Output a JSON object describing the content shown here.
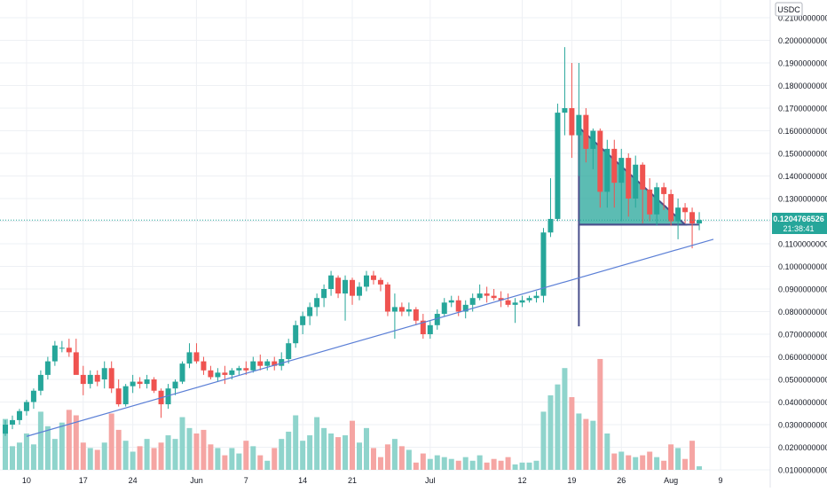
{
  "chart_data": {
    "type": "candlestick",
    "currency": "USDC",
    "price_label": "0.1204766526",
    "countdown": "21:38:41",
    "ylim": [
      0.0095,
      0.2115
    ],
    "y_ticks": [
      "0.2100000000",
      "0.2000000000",
      "0.1900000000",
      "0.1800000000",
      "0.1700000000",
      "0.1600000000",
      "0.1500000000",
      "0.1400000000",
      "0.1300000000",
      "0.1200000000",
      "0.1100000000",
      "0.1000000000",
      "0.0900000000",
      "0.0800000000",
      "0.0700000000",
      "0.0600000000",
      "0.0500000000",
      "0.0400000000",
      "0.0300000000",
      "0.0200000000",
      "0.0100000000"
    ],
    "x_ticks": [
      "10",
      "17",
      "24",
      "Jun",
      "7",
      "14",
      "21",
      "Jul",
      "12",
      "19",
      "26",
      "Aug",
      "9"
    ],
    "candles": [
      [
        0.026,
        0.032,
        0.025,
        0.03
      ],
      [
        0.03,
        0.034,
        0.028,
        0.032
      ],
      [
        0.032,
        0.037,
        0.03,
        0.036
      ],
      [
        0.036,
        0.041,
        0.034,
        0.04
      ],
      [
        0.04,
        0.046,
        0.037,
        0.045
      ],
      [
        0.045,
        0.054,
        0.043,
        0.052
      ],
      [
        0.052,
        0.06,
        0.05,
        0.058
      ],
      [
        0.058,
        0.067,
        0.056,
        0.065
      ],
      [
        0.064,
        0.067,
        0.062,
        0.064
      ],
      [
        0.064,
        0.068,
        0.06,
        0.062
      ],
      [
        0.062,
        0.068,
        0.053,
        0.052
      ],
      [
        0.052,
        0.056,
        0.043,
        0.048
      ],
      [
        0.048,
        0.054,
        0.046,
        0.052
      ],
      [
        0.052,
        0.054,
        0.047,
        0.049
      ],
      [
        0.05,
        0.058,
        0.046,
        0.055
      ],
      [
        0.055,
        0.058,
        0.044,
        0.046
      ],
      [
        0.046,
        0.05,
        0.038,
        0.039
      ],
      [
        0.039,
        0.048,
        0.038,
        0.047
      ],
      [
        0.047,
        0.052,
        0.044,
        0.049
      ],
      [
        0.049,
        0.051,
        0.046,
        0.048
      ],
      [
        0.048,
        0.052,
        0.046,
        0.05
      ],
      [
        0.05,
        0.051,
        0.044,
        0.045
      ],
      [
        0.045,
        0.046,
        0.033,
        0.039
      ],
      [
        0.039,
        0.048,
        0.037,
        0.046
      ],
      [
        0.046,
        0.05,
        0.043,
        0.049
      ],
      [
        0.049,
        0.058,
        0.048,
        0.057
      ],
      [
        0.057,
        0.066,
        0.055,
        0.062
      ],
      [
        0.062,
        0.066,
        0.057,
        0.058
      ],
      [
        0.058,
        0.06,
        0.052,
        0.054
      ],
      [
        0.054,
        0.056,
        0.05,
        0.051
      ],
      [
        0.051,
        0.055,
        0.049,
        0.053
      ],
      [
        0.053,
        0.056,
        0.048,
        0.052
      ],
      [
        0.052,
        0.055,
        0.05,
        0.054
      ],
      [
        0.054,
        0.056,
        0.052,
        0.055
      ],
      [
        0.055,
        0.058,
        0.052,
        0.054
      ],
      [
        0.054,
        0.06,
        0.053,
        0.058
      ],
      [
        0.058,
        0.061,
        0.054,
        0.056
      ],
      [
        0.056,
        0.059,
        0.054,
        0.058
      ],
      [
        0.058,
        0.06,
        0.054,
        0.056
      ],
      [
        0.056,
        0.062,
        0.054,
        0.059
      ],
      [
        0.059,
        0.068,
        0.057,
        0.066
      ],
      [
        0.066,
        0.076,
        0.064,
        0.074
      ],
      [
        0.074,
        0.08,
        0.07,
        0.078
      ],
      [
        0.078,
        0.084,
        0.074,
        0.082
      ],
      [
        0.082,
        0.088,
        0.078,
        0.086
      ],
      [
        0.086,
        0.092,
        0.082,
        0.09
      ],
      [
        0.09,
        0.098,
        0.087,
        0.096
      ],
      [
        0.095,
        0.096,
        0.086,
        0.088
      ],
      [
        0.088,
        0.096,
        0.076,
        0.094
      ],
      [
        0.094,
        0.095,
        0.083,
        0.087
      ],
      [
        0.087,
        0.093,
        0.085,
        0.091
      ],
      [
        0.091,
        0.098,
        0.089,
        0.096
      ],
      [
        0.096,
        0.098,
        0.092,
        0.094
      ],
      [
        0.094,
        0.095,
        0.089,
        0.092
      ],
      [
        0.092,
        0.093,
        0.078,
        0.08
      ],
      [
        0.08,
        0.088,
        0.068,
        0.082
      ],
      [
        0.082,
        0.084,
        0.078,
        0.08
      ],
      [
        0.08,
        0.084,
        0.078,
        0.081
      ],
      [
        0.081,
        0.082,
        0.074,
        0.076
      ],
      [
        0.076,
        0.079,
        0.068,
        0.07
      ],
      [
        0.07,
        0.076,
        0.068,
        0.074
      ],
      [
        0.074,
        0.081,
        0.072,
        0.079
      ],
      [
        0.079,
        0.086,
        0.078,
        0.084
      ],
      [
        0.084,
        0.087,
        0.082,
        0.085
      ],
      [
        0.085,
        0.087,
        0.078,
        0.08
      ],
      [
        0.08,
        0.085,
        0.077,
        0.083
      ],
      [
        0.083,
        0.088,
        0.08,
        0.086
      ],
      [
        0.086,
        0.092,
        0.085,
        0.088
      ],
      [
        0.088,
        0.091,
        0.084,
        0.087
      ],
      [
        0.087,
        0.09,
        0.085,
        0.086
      ],
      [
        0.086,
        0.089,
        0.082,
        0.085
      ],
      [
        0.085,
        0.088,
        0.082,
        0.083
      ],
      [
        0.083,
        0.086,
        0.075,
        0.084
      ],
      [
        0.084,
        0.087,
        0.082,
        0.085
      ],
      [
        0.085,
        0.087,
        0.084,
        0.086
      ],
      [
        0.086,
        0.089,
        0.084,
        0.087
      ],
      [
        0.087,
        0.117,
        0.084,
        0.115
      ],
      [
        0.115,
        0.139,
        0.113,
        0.121
      ],
      [
        0.121,
        0.172,
        0.12,
        0.168
      ],
      [
        0.168,
        0.197,
        0.158,
        0.17
      ],
      [
        0.17,
        0.19,
        0.148,
        0.158
      ],
      [
        0.158,
        0.19,
        0.14,
        0.167
      ],
      [
        0.167,
        0.17,
        0.146,
        0.152
      ],
      [
        0.152,
        0.161,
        0.143,
        0.16
      ],
      [
        0.16,
        0.161,
        0.126,
        0.133
      ],
      [
        0.133,
        0.156,
        0.126,
        0.152
      ],
      [
        0.152,
        0.156,
        0.126,
        0.137
      ],
      [
        0.137,
        0.152,
        0.12,
        0.148
      ],
      [
        0.148,
        0.15,
        0.122,
        0.13
      ],
      [
        0.13,
        0.149,
        0.126,
        0.145
      ],
      [
        0.145,
        0.146,
        0.119,
        0.134
      ],
      [
        0.134,
        0.139,
        0.12,
        0.123
      ],
      [
        0.123,
        0.137,
        0.118,
        0.135
      ],
      [
        0.135,
        0.137,
        0.125,
        0.132
      ],
      [
        0.132,
        0.134,
        0.118,
        0.12
      ],
      [
        0.12,
        0.13,
        0.112,
        0.126
      ],
      [
        0.126,
        0.128,
        0.119,
        0.124
      ],
      [
        0.124,
        0.126,
        0.108,
        0.119
      ],
      [
        0.119,
        0.124,
        0.116,
        0.1205
      ]
    ],
    "volume": [
      0.028,
      0.013,
      0.015,
      0.02,
      0.014,
      0.032,
      0.024,
      0.017,
      0.026,
      0.033,
      0.03,
      0.015,
      0.012,
      0.011,
      0.015,
      0.031,
      0.022,
      0.016,
      0.01,
      0.013,
      0.017,
      0.012,
      0.015,
      0.019,
      0.017,
      0.029,
      0.023,
      0.02,
      0.022,
      0.014,
      0.012,
      0.008,
      0.012,
      0.009,
      0.016,
      0.013,
      0.008,
      0.005,
      0.012,
      0.017,
      0.021,
      0.03,
      0.016,
      0.019,
      0.029,
      0.023,
      0.02,
      0.018,
      0.019,
      0.027,
      0.015,
      0.023,
      0.012,
      0.007,
      0.014,
      0.017,
      0.013,
      0.011,
      0.004,
      0.009,
      0.006,
      0.008,
      0.007,
      0.006,
      0.005,
      0.007,
      0.005,
      0.008,
      0.004,
      0.006,
      0.005,
      0.007,
      0.003,
      0.004,
      0.004,
      0.005,
      0.032,
      0.041,
      0.047,
      0.056,
      0.04,
      0.031,
      0.028,
      0.027,
      0.061,
      0.02,
      0.009,
      0.01,
      0.008,
      0.007,
      0.008,
      0.01,
      0.007,
      0.005,
      0.014,
      0.012,
      0.006,
      0.016,
      0.002
    ],
    "annotations": {
      "triangle_pattern": "descending triangle",
      "support_trendline": "ascending"
    },
    "colors": {
      "up": "#26a69a",
      "down": "#ef5350",
      "up_volume": "#8fd4cc",
      "down_volume": "#f5a5a3",
      "triangle_fill": "#26a69a",
      "triangle_edge": "#4a4f8c",
      "trendline": "#5b7fd6",
      "price_line": "#26a69a",
      "grid": "#eef0f4"
    }
  }
}
